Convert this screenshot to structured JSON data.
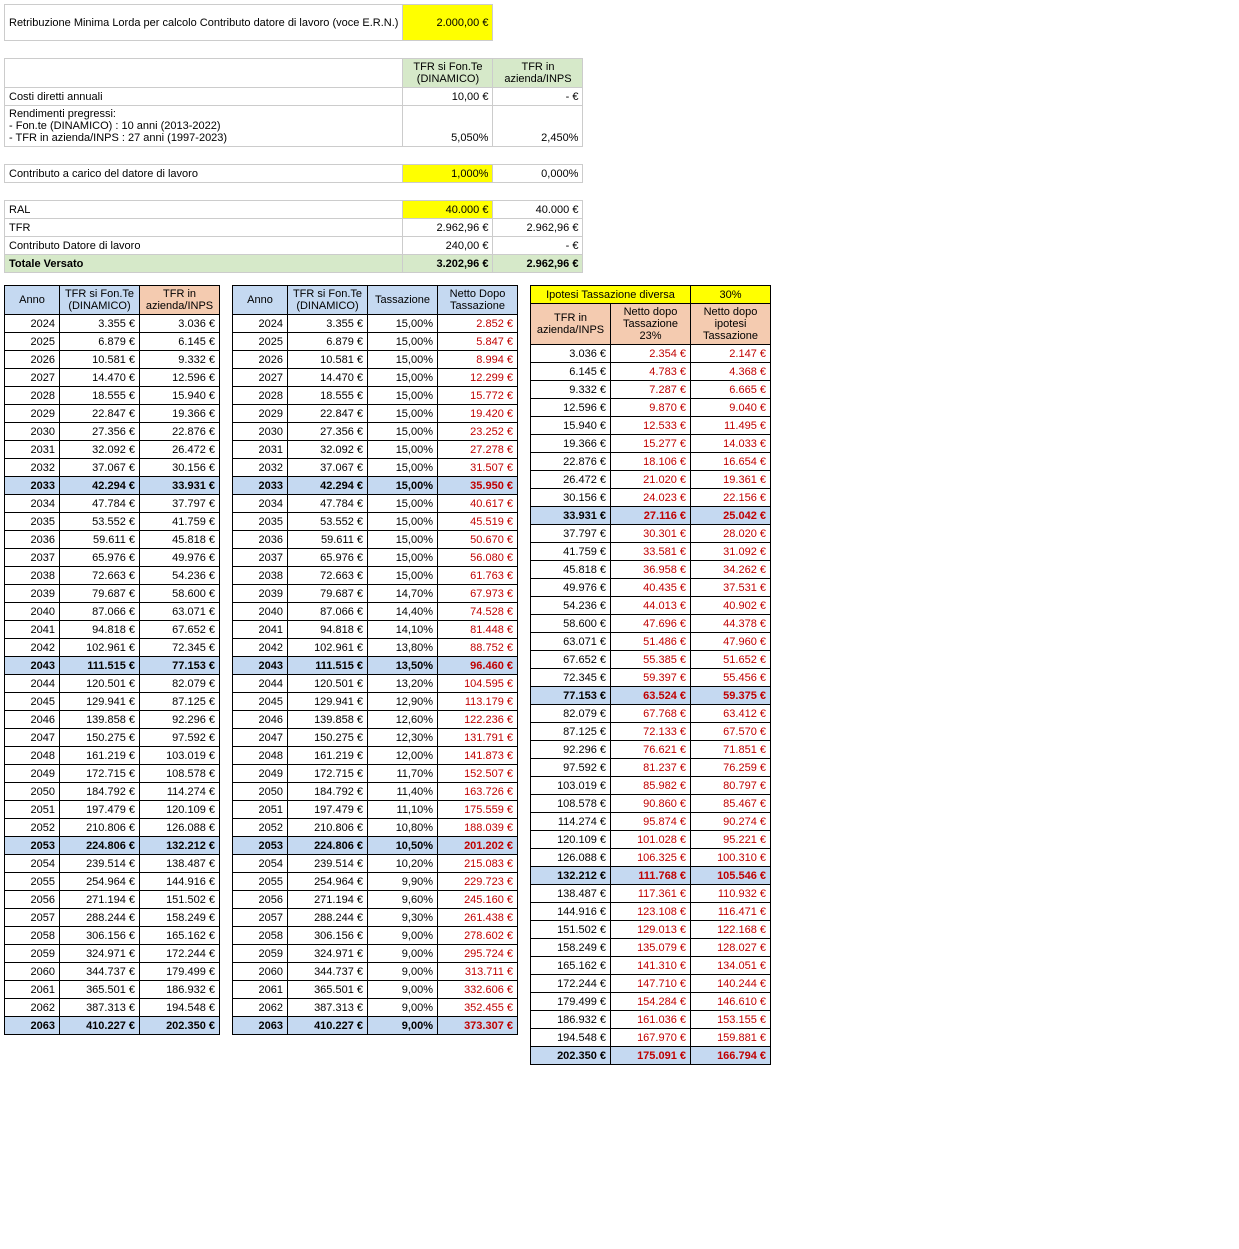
{
  "top": {
    "retribuzione_label": "Retribuzione Minima Lorda per calcolo Contributo datore di lavoro (voce E.R.N.)",
    "retribuzione_value": "2.000,00 €",
    "col_fonte": "TFR si Fon.Te (DINAMICO)",
    "col_inps": "TFR in azienda/INPS",
    "costi_diretti_label": "Costi diretti annuali",
    "costi_diretti_fonte": "10,00 €",
    "costi_diretti_inps": "-   €",
    "rendimenti_label": "Rendimenti pregressi:",
    "rendimenti_fonte_note": "- Fon.te (DINAMICO) : 10 anni (2013-2022)",
    "rendimenti_inps_note": "- TFR in azienda/INPS : 27 anni (1997-2023)",
    "rendimenti_fonte": "5,050%",
    "rendimenti_inps": "2,450%",
    "contributo_carico_label": "Contributo a carico del datore di lavoro",
    "contributo_carico_fonte": "1,000%",
    "contributo_carico_inps": "0,000%",
    "ral_label": "RAL",
    "ral_fonte": "40.000 €",
    "ral_inps": "40.000 €",
    "tfr_label": "TFR",
    "tfr_fonte": "2.962,96 €",
    "tfr_inps": "2.962,96 €",
    "contributo_datore_label": "Contributo Datore di lavoro",
    "contributo_datore_fonte": "240,00 €",
    "contributo_datore_inps": "-   €",
    "totale_label": "Totale Versato",
    "totale_fonte": "3.202,96 €",
    "totale_inps": "2.962,96 €"
  },
  "tax_banner": {
    "label": "Ipotesi Tassazione diversa",
    "value": "30%"
  },
  "headers": {
    "anno": "Anno",
    "fonte": "TFR si Fon.Te (DINAMICO)",
    "inps": "TFR in azienda/INPS",
    "tassazione": "Tassazione",
    "netto_dopo": "Netto Dopo Tassazione",
    "netto23": "Netto dopo Tassazione 23%",
    "netto_ipotesi": "Netto dopo ipotesi Tassazione"
  },
  "milestones": [
    2033,
    2043,
    2053,
    2063
  ],
  "rows": [
    [
      2024,
      "3.355 €",
      "3.036 €",
      "15,00%",
      "2.852 €",
      "2.354 €",
      "2.147 €"
    ],
    [
      2025,
      "6.879 €",
      "6.145 €",
      "15,00%",
      "5.847 €",
      "4.783 €",
      "4.368 €"
    ],
    [
      2026,
      "10.581 €",
      "9.332 €",
      "15,00%",
      "8.994 €",
      "7.287 €",
      "6.665 €"
    ],
    [
      2027,
      "14.470 €",
      "12.596 €",
      "15,00%",
      "12.299 €",
      "9.870 €",
      "9.040 €"
    ],
    [
      2028,
      "18.555 €",
      "15.940 €",
      "15,00%",
      "15.772 €",
      "12.533 €",
      "11.495 €"
    ],
    [
      2029,
      "22.847 €",
      "19.366 €",
      "15,00%",
      "19.420 €",
      "15.277 €",
      "14.033 €"
    ],
    [
      2030,
      "27.356 €",
      "22.876 €",
      "15,00%",
      "23.252 €",
      "18.106 €",
      "16.654 €"
    ],
    [
      2031,
      "32.092 €",
      "26.472 €",
      "15,00%",
      "27.278 €",
      "21.020 €",
      "19.361 €"
    ],
    [
      2032,
      "37.067 €",
      "30.156 €",
      "15,00%",
      "31.507 €",
      "24.023 €",
      "22.156 €"
    ],
    [
      2033,
      "42.294 €",
      "33.931 €",
      "15,00%",
      "35.950 €",
      "27.116 €",
      "25.042 €"
    ],
    [
      2034,
      "47.784 €",
      "37.797 €",
      "15,00%",
      "40.617 €",
      "30.301 €",
      "28.020 €"
    ],
    [
      2035,
      "53.552 €",
      "41.759 €",
      "15,00%",
      "45.519 €",
      "33.581 €",
      "31.092 €"
    ],
    [
      2036,
      "59.611 €",
      "45.818 €",
      "15,00%",
      "50.670 €",
      "36.958 €",
      "34.262 €"
    ],
    [
      2037,
      "65.976 €",
      "49.976 €",
      "15,00%",
      "56.080 €",
      "40.435 €",
      "37.531 €"
    ],
    [
      2038,
      "72.663 €",
      "54.236 €",
      "15,00%",
      "61.763 €",
      "44.013 €",
      "40.902 €"
    ],
    [
      2039,
      "79.687 €",
      "58.600 €",
      "14,70%",
      "67.973 €",
      "47.696 €",
      "44.378 €"
    ],
    [
      2040,
      "87.066 €",
      "63.071 €",
      "14,40%",
      "74.528 €",
      "51.486 €",
      "47.960 €"
    ],
    [
      2041,
      "94.818 €",
      "67.652 €",
      "14,10%",
      "81.448 €",
      "55.385 €",
      "51.652 €"
    ],
    [
      2042,
      "102.961 €",
      "72.345 €",
      "13,80%",
      "88.752 €",
      "59.397 €",
      "55.456 €"
    ],
    [
      2043,
      "111.515 €",
      "77.153 €",
      "13,50%",
      "96.460 €",
      "63.524 €",
      "59.375 €"
    ],
    [
      2044,
      "120.501 €",
      "82.079 €",
      "13,20%",
      "104.595 €",
      "67.768 €",
      "63.412 €"
    ],
    [
      2045,
      "129.941 €",
      "87.125 €",
      "12,90%",
      "113.179 €",
      "72.133 €",
      "67.570 €"
    ],
    [
      2046,
      "139.858 €",
      "92.296 €",
      "12,60%",
      "122.236 €",
      "76.621 €",
      "71.851 €"
    ],
    [
      2047,
      "150.275 €",
      "97.592 €",
      "12,30%",
      "131.791 €",
      "81.237 €",
      "76.259 €"
    ],
    [
      2048,
      "161.219 €",
      "103.019 €",
      "12,00%",
      "141.873 €",
      "85.982 €",
      "80.797 €"
    ],
    [
      2049,
      "172.715 €",
      "108.578 €",
      "11,70%",
      "152.507 €",
      "90.860 €",
      "85.467 €"
    ],
    [
      2050,
      "184.792 €",
      "114.274 €",
      "11,40%",
      "163.726 €",
      "95.874 €",
      "90.274 €"
    ],
    [
      2051,
      "197.479 €",
      "120.109 €",
      "11,10%",
      "175.559 €",
      "101.028 €",
      "95.221 €"
    ],
    [
      2052,
      "210.806 €",
      "126.088 €",
      "10,80%",
      "188.039 €",
      "106.325 €",
      "100.310 €"
    ],
    [
      2053,
      "224.806 €",
      "132.212 €",
      "10,50%",
      "201.202 €",
      "111.768 €",
      "105.546 €"
    ],
    [
      2054,
      "239.514 €",
      "138.487 €",
      "10,20%",
      "215.083 €",
      "117.361 €",
      "110.932 €"
    ],
    [
      2055,
      "254.964 €",
      "144.916 €",
      "9,90%",
      "229.723 €",
      "123.108 €",
      "116.471 €"
    ],
    [
      2056,
      "271.194 €",
      "151.502 €",
      "9,60%",
      "245.160 €",
      "129.013 €",
      "122.168 €"
    ],
    [
      2057,
      "288.244 €",
      "158.249 €",
      "9,30%",
      "261.438 €",
      "135.079 €",
      "128.027 €"
    ],
    [
      2058,
      "306.156 €",
      "165.162 €",
      "9,00%",
      "278.602 €",
      "141.310 €",
      "134.051 €"
    ],
    [
      2059,
      "324.971 €",
      "172.244 €",
      "9,00%",
      "295.724 €",
      "147.710 €",
      "140.244 €"
    ],
    [
      2060,
      "344.737 €",
      "179.499 €",
      "9,00%",
      "313.711 €",
      "154.284 €",
      "146.610 €"
    ],
    [
      2061,
      "365.501 €",
      "186.932 €",
      "9,00%",
      "332.606 €",
      "161.036 €",
      "153.155 €"
    ],
    [
      2062,
      "387.313 €",
      "194.548 €",
      "9,00%",
      "352.455 €",
      "167.970 €",
      "159.881 €"
    ],
    [
      2063,
      "410.227 €",
      "202.350 €",
      "9,00%",
      "373.307 €",
      "175.091 €",
      "166.794 €"
    ]
  ]
}
